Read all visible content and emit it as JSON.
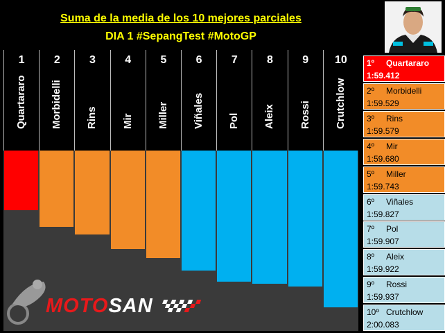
{
  "title": "Suma de la media de los 10 mejores parciales",
  "subtitle": "DIA 1 #SepangTest #MotoGP",
  "logo_text_red": "MOTO",
  "logo_text_white": "SAN",
  "colors": {
    "first": "#ff0000",
    "orange": "#f28c28",
    "blue": "#00b0f0",
    "yellow": "#ffff00",
    "panel_blue": "#b7dde8"
  },
  "chart_data": {
    "type": "bar",
    "title": "Suma de la media de los 10 mejores parciales",
    "subtitle": "DIA 1 #SepangTest #MotoGP",
    "categories": [
      "Quartararo",
      "Morbidelli",
      "Rins",
      "Mir",
      "Miller",
      "Viñales",
      "Pol",
      "Aleix",
      "Rossi",
      "Crutchlow"
    ],
    "positions": [
      "1",
      "2",
      "3",
      "4",
      "5",
      "6",
      "7",
      "8",
      "9",
      "10"
    ],
    "values": [
      119.412,
      119.529,
      119.579,
      119.68,
      119.743,
      119.827,
      119.907,
      119.922,
      119.937,
      120.083
    ],
    "color_groups": [
      "red",
      "orange",
      "orange",
      "orange",
      "orange",
      "blue",
      "blue",
      "blue",
      "blue",
      "blue"
    ]
  },
  "standings": [
    {
      "pos": "1º",
      "rider": "Quartararo",
      "time": "1:59.412"
    },
    {
      "pos": "2º",
      "rider": "Morbidelli",
      "time": "1:59.529"
    },
    {
      "pos": "3º",
      "rider": "Rins",
      "time": "1:59.579"
    },
    {
      "pos": "4º",
      "rider": "Mir",
      "time": "1:59.680"
    },
    {
      "pos": "5º",
      "rider": "Miller",
      "time": "1:59.743"
    },
    {
      "pos": "6º",
      "rider": "Viñales",
      "time": "1:59.827"
    },
    {
      "pos": "7º",
      "rider": "Pol",
      "time": "1:59.907"
    },
    {
      "pos": "8º",
      "rider": "Aleix",
      "time": "1:59.922"
    },
    {
      "pos": "9º",
      "rider": "Rossi",
      "time": "1:59.937"
    },
    {
      "pos": "10º",
      "rider": "Crutchlow",
      "time": "2:00.083"
    }
  ]
}
